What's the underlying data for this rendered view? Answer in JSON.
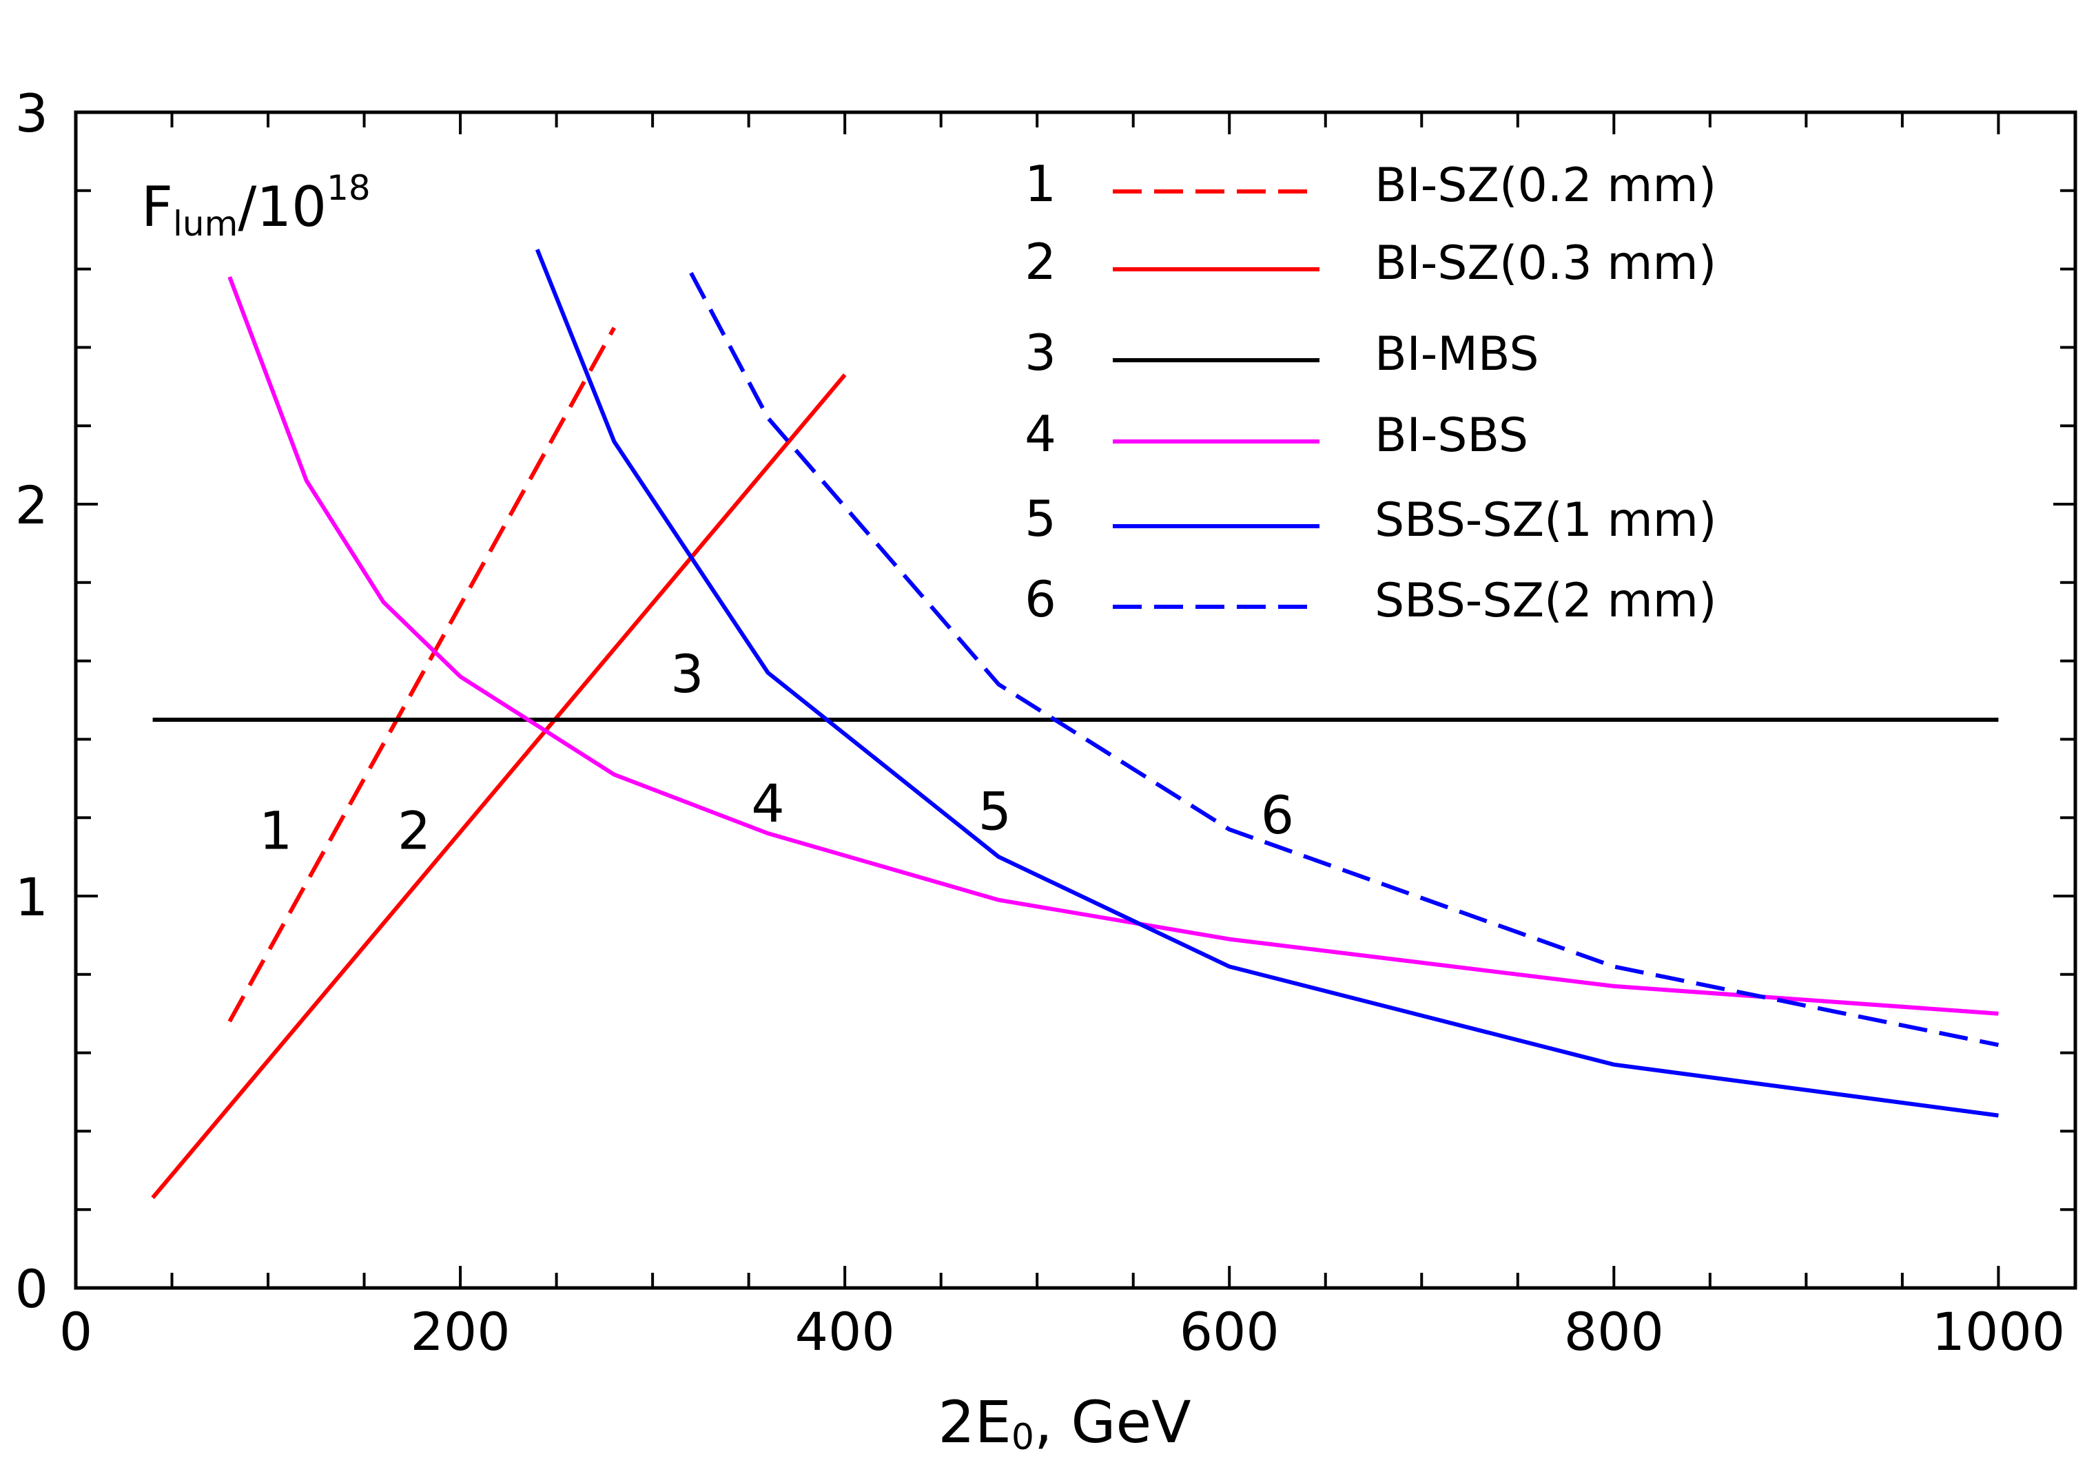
{
  "chart_data": {
    "type": "line",
    "ylabel": {
      "main": "F",
      "sub": "lum",
      "mid": "/10",
      "sup": "18"
    },
    "xlabel": {
      "pre": "2E",
      "sub": "0",
      "post": ", GeV"
    },
    "xlim": [
      0,
      1040
    ],
    "ylim": [
      0,
      3
    ],
    "xticks": [
      0,
      200,
      400,
      600,
      800,
      1000
    ],
    "yticks": [
      0,
      1,
      2,
      3
    ],
    "series": [
      {
        "id": "1",
        "name": "BI-SZ(0.2 mm)",
        "color": "#ff0000",
        "style": "dashed",
        "points": [
          [
            80,
            0.68
          ],
          [
            280,
            2.45
          ]
        ],
        "label": "1",
        "label_at": [
          104,
          1.12
        ]
      },
      {
        "id": "2",
        "name": "BI-SZ(0.3 mm)",
        "color": "#ff0000",
        "style": "solid",
        "points": [
          [
            40,
            0.23
          ],
          [
            400,
            2.33
          ]
        ],
        "label": "2",
        "label_at": [
          176,
          1.12
        ]
      },
      {
        "id": "3",
        "name": "BI-MBS",
        "color": "#000000",
        "style": "solid",
        "points": [
          [
            40,
            1.45
          ],
          [
            1000,
            1.45
          ]
        ],
        "label": "3",
        "label_at": [
          318,
          1.52
        ]
      },
      {
        "id": "4",
        "name": "BI-SBS",
        "color": "#ff00ff",
        "style": "solid",
        "points": [
          [
            80,
            2.58
          ],
          [
            120,
            2.06
          ],
          [
            160,
            1.75
          ],
          [
            200,
            1.56
          ],
          [
            280,
            1.31
          ],
          [
            360,
            1.16
          ],
          [
            480,
            0.99
          ],
          [
            600,
            0.89
          ],
          [
            800,
            0.77
          ],
          [
            1000,
            0.7
          ]
        ],
        "label": "4",
        "label_at": [
          360,
          1.19
        ]
      },
      {
        "id": "5",
        "name": "SBS-SZ(1 mm)",
        "color": "#0000ff",
        "style": "solid",
        "points": [
          [
            240,
            2.65
          ],
          [
            280,
            2.16
          ],
          [
            360,
            1.57
          ],
          [
            480,
            1.1
          ],
          [
            600,
            0.82
          ],
          [
            800,
            0.57
          ],
          [
            1000,
            0.44
          ]
        ],
        "label": "5",
        "label_at": [
          478,
          1.17
        ]
      },
      {
        "id": "6",
        "name": "SBS-SZ(2 mm)",
        "color": "#0000ff",
        "style": "dashed",
        "points": [
          [
            320,
            2.59
          ],
          [
            360,
            2.22
          ],
          [
            480,
            1.54
          ],
          [
            600,
            1.17
          ],
          [
            800,
            0.82
          ],
          [
            1000,
            0.62
          ]
        ],
        "label": "6",
        "label_at": [
          625,
          1.16
        ]
      }
    ],
    "legend": {
      "position": "top-right"
    }
  }
}
